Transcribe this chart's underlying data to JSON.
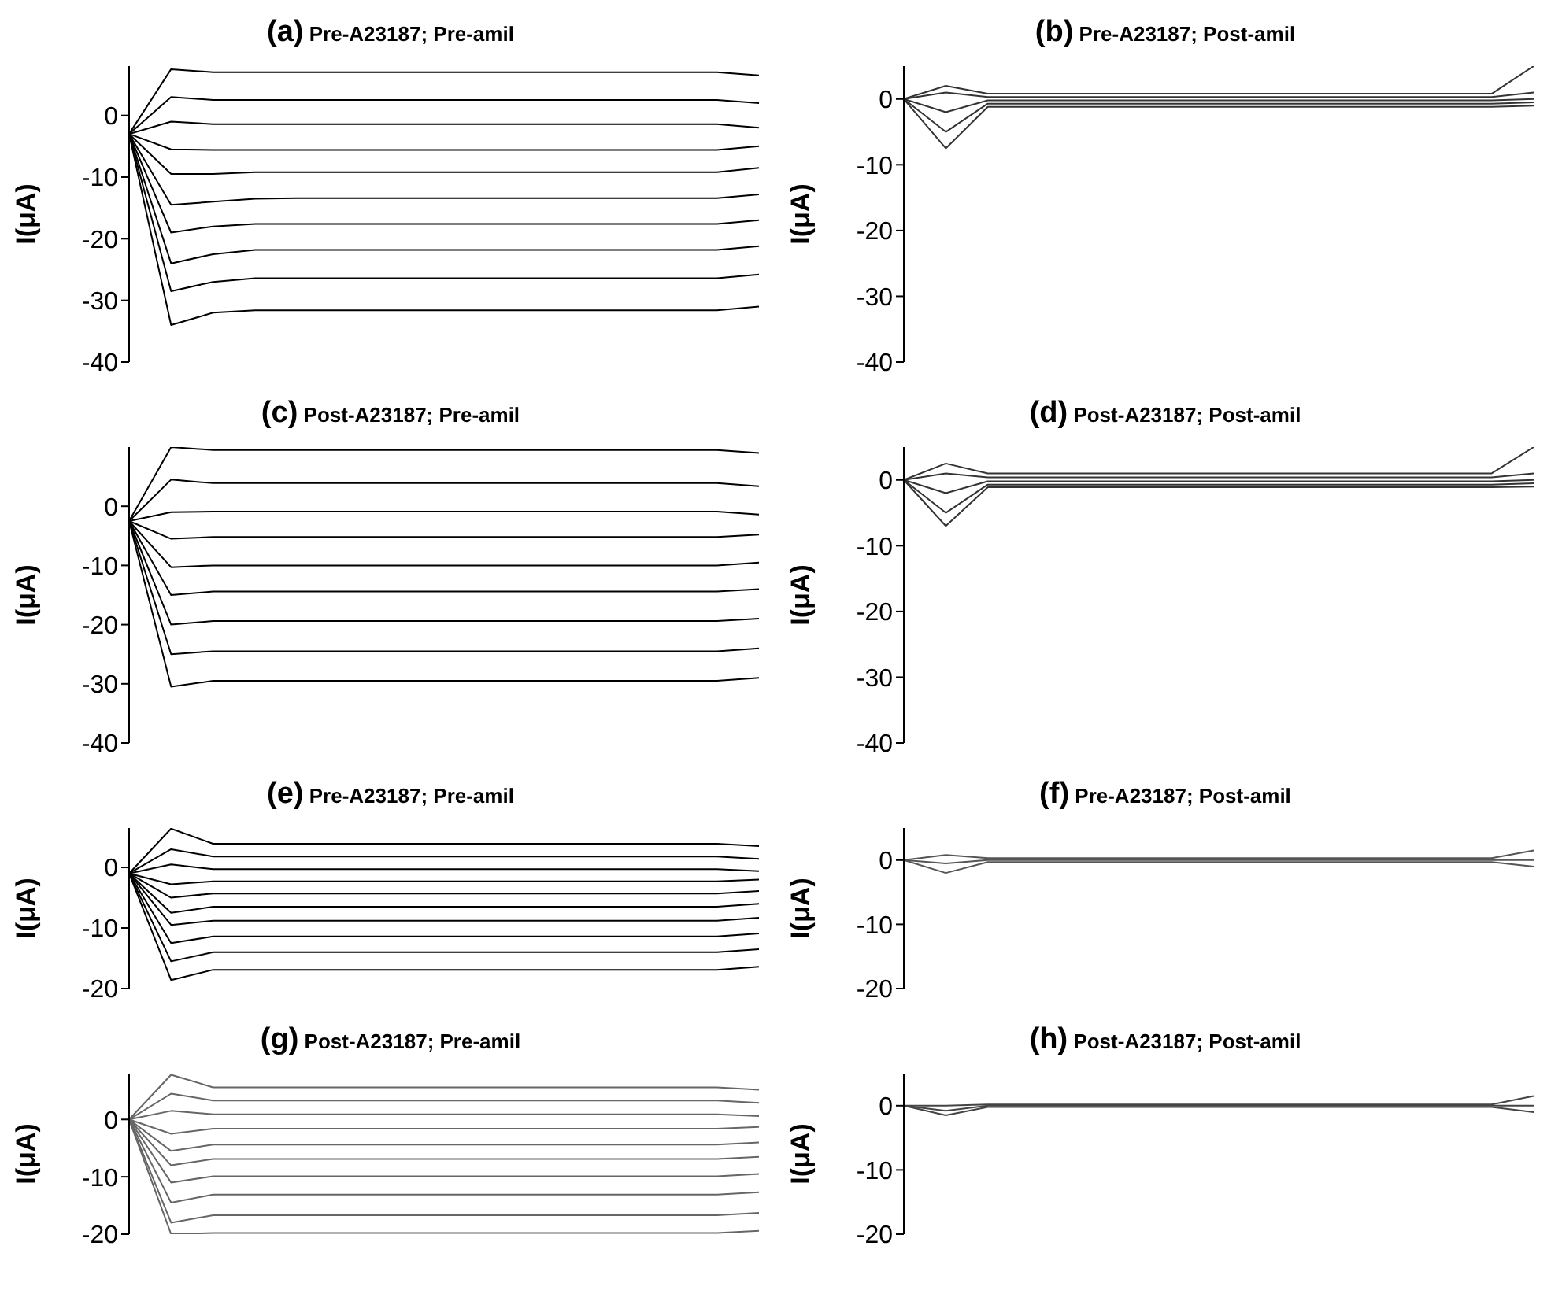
{
  "chart_data": [
    {
      "type": "line",
      "title": "(a) Pre-A23187; Pre-amil",
      "ylabel": "I(μA)",
      "tick_labels": "y",
      "ylim": [
        -40,
        8
      ],
      "yticks": [
        -40,
        -30,
        -20,
        -10,
        0
      ],
      "categories": [
        null,
        null,
        null,
        null,
        null,
        null,
        null,
        null,
        null,
        null,
        null,
        null,
        null,
        null,
        null,
        null
      ],
      "series": [
        {
          "color": "#000000",
          "values": [
            -3,
            7.5,
            7,
            7,
            7,
            7,
            7,
            7,
            7,
            7,
            7,
            7,
            7,
            7,
            7,
            6.5
          ]
        },
        {
          "color": "#000000",
          "values": [
            -3,
            3,
            2.5,
            2.5,
            2.5,
            2.5,
            2.5,
            2.5,
            2.5,
            2.5,
            2.5,
            2.5,
            2.5,
            2.5,
            2.5,
            2
          ]
        },
        {
          "color": "#000000",
          "values": [
            -3,
            -1,
            -1.4,
            -1.4,
            -1.4,
            -1.4,
            -1.4,
            -1.4,
            -1.4,
            -1.4,
            -1.4,
            -1.4,
            -1.4,
            -1.4,
            -1.4,
            -2
          ]
        },
        {
          "color": "#000000",
          "values": [
            -3,
            -5.5,
            -5.6,
            -5.6,
            -5.6,
            -5.6,
            -5.6,
            -5.6,
            -5.6,
            -5.6,
            -5.6,
            -5.6,
            -5.6,
            -5.6,
            -5.6,
            -5
          ]
        },
        {
          "color": "#000000",
          "values": [
            -3,
            -9.5,
            -9.5,
            -9.2,
            -9.2,
            -9.2,
            -9.2,
            -9.2,
            -9.2,
            -9.2,
            -9.2,
            -9.2,
            -9.2,
            -9.2,
            -9.2,
            -8.5
          ]
        },
        {
          "color": "#000000",
          "values": [
            -3,
            -14.5,
            -14,
            -13.5,
            -13.4,
            -13.4,
            -13.4,
            -13.4,
            -13.4,
            -13.4,
            -13.4,
            -13.4,
            -13.4,
            -13.4,
            -13.4,
            -12.8
          ]
        },
        {
          "color": "#000000",
          "values": [
            -3,
            -19,
            -18,
            -17.6,
            -17.6,
            -17.6,
            -17.6,
            -17.6,
            -17.6,
            -17.6,
            -17.6,
            -17.6,
            -17.6,
            -17.6,
            -17.6,
            -17
          ]
        },
        {
          "color": "#000000",
          "values": [
            -3,
            -24,
            -22.5,
            -21.8,
            -21.8,
            -21.8,
            -21.8,
            -21.8,
            -21.8,
            -21.8,
            -21.8,
            -21.8,
            -21.8,
            -21.8,
            -21.8,
            -21.2
          ]
        },
        {
          "color": "#000000",
          "values": [
            -3,
            -28.5,
            -27,
            -26.4,
            -26.4,
            -26.4,
            -26.4,
            -26.4,
            -26.4,
            -26.4,
            -26.4,
            -26.4,
            -26.4,
            -26.4,
            -26.4,
            -25.8
          ]
        },
        {
          "color": "#000000",
          "values": [
            -3,
            -34,
            -32,
            -31.6,
            -31.6,
            -31.6,
            -31.6,
            -31.6,
            -31.6,
            -31.6,
            -31.6,
            -31.6,
            -31.6,
            -31.6,
            -31.6,
            -31
          ]
        }
      ]
    },
    {
      "type": "line",
      "title": "(b) Pre-A23187; Post-amil",
      "ylabel": "I(μA)",
      "tick_labels": "y",
      "ylim": [
        -40,
        5
      ],
      "yticks": [
        -40,
        -30,
        -20,
        -10,
        0
      ],
      "categories": [
        null,
        null,
        null,
        null,
        null,
        null,
        null,
        null,
        null,
        null,
        null,
        null,
        null,
        null,
        null,
        null
      ],
      "series": [
        {
          "color": "#333333",
          "values": [
            0,
            2,
            0.8,
            0.8,
            0.8,
            0.8,
            0.8,
            0.8,
            0.8,
            0.8,
            0.8,
            0.8,
            0.8,
            0.8,
            0.8,
            5
          ]
        },
        {
          "color": "#333333",
          "values": [
            0,
            1,
            0.3,
            0.3,
            0.3,
            0.3,
            0.3,
            0.3,
            0.3,
            0.3,
            0.3,
            0.3,
            0.3,
            0.3,
            0.3,
            1
          ]
        },
        {
          "color": "#333333",
          "values": [
            0,
            -2,
            -0.2,
            -0.2,
            -0.2,
            -0.2,
            -0.2,
            -0.2,
            -0.2,
            -0.2,
            -0.2,
            -0.2,
            -0.2,
            -0.2,
            -0.2,
            0
          ]
        },
        {
          "color": "#333333",
          "values": [
            0,
            -5,
            -0.7,
            -0.7,
            -0.7,
            -0.7,
            -0.7,
            -0.7,
            -0.7,
            -0.7,
            -0.7,
            -0.7,
            -0.7,
            -0.7,
            -0.7,
            -0.5
          ]
        },
        {
          "color": "#333333",
          "values": [
            0,
            -7.5,
            -1.2,
            -1.2,
            -1.2,
            -1.2,
            -1.2,
            -1.2,
            -1.2,
            -1.2,
            -1.2,
            -1.2,
            -1.2,
            -1.2,
            -1.2,
            -1
          ]
        }
      ]
    },
    {
      "type": "line",
      "title": "(c) Post-A23187; Pre-amil",
      "ylabel": "I(μA)",
      "tick_labels": "y",
      "ylim": [
        -40,
        10
      ],
      "yticks": [
        -40,
        -30,
        -20,
        -10,
        0
      ],
      "categories": [
        null,
        null,
        null,
        null,
        null,
        null,
        null,
        null,
        null,
        null,
        null,
        null,
        null,
        null,
        null,
        null
      ],
      "series": [
        {
          "color": "#000000",
          "values": [
            -2.5,
            10,
            9.5,
            9.5,
            9.5,
            9.5,
            9.5,
            9.5,
            9.5,
            9.5,
            9.5,
            9.5,
            9.5,
            9.5,
            9.5,
            9
          ]
        },
        {
          "color": "#000000",
          "values": [
            -2.5,
            4.5,
            3.9,
            3.9,
            3.9,
            3.9,
            3.9,
            3.9,
            3.9,
            3.9,
            3.9,
            3.9,
            3.9,
            3.9,
            3.9,
            3.4
          ]
        },
        {
          "color": "#000000",
          "values": [
            -2.5,
            -1,
            -0.9,
            -0.9,
            -0.9,
            -0.9,
            -0.9,
            -0.9,
            -0.9,
            -0.9,
            -0.9,
            -0.9,
            -0.9,
            -0.9,
            -0.9,
            -1.4
          ]
        },
        {
          "color": "#000000",
          "values": [
            -2.5,
            -5.5,
            -5.2,
            -5.2,
            -5.2,
            -5.2,
            -5.2,
            -5.2,
            -5.2,
            -5.2,
            -5.2,
            -5.2,
            -5.2,
            -5.2,
            -5.2,
            -4.8
          ]
        },
        {
          "color": "#000000",
          "values": [
            -2.5,
            -10.3,
            -10,
            -10,
            -10,
            -10,
            -10,
            -10,
            -10,
            -10,
            -10,
            -10,
            -10,
            -10,
            -10,
            -9.5
          ]
        },
        {
          "color": "#000000",
          "values": [
            -2.5,
            -15,
            -14.4,
            -14.4,
            -14.4,
            -14.4,
            -14.4,
            -14.4,
            -14.4,
            -14.4,
            -14.4,
            -14.4,
            -14.4,
            -14.4,
            -14.4,
            -14
          ]
        },
        {
          "color": "#000000",
          "values": [
            -2.5,
            -20,
            -19.4,
            -19.4,
            -19.4,
            -19.4,
            -19.4,
            -19.4,
            -19.4,
            -19.4,
            -19.4,
            -19.4,
            -19.4,
            -19.4,
            -19.4,
            -19
          ]
        },
        {
          "color": "#000000",
          "values": [
            -2.5,
            -25,
            -24.5,
            -24.5,
            -24.5,
            -24.5,
            -24.5,
            -24.5,
            -24.5,
            -24.5,
            -24.5,
            -24.5,
            -24.5,
            -24.5,
            -24.5,
            -24
          ]
        },
        {
          "color": "#000000",
          "values": [
            -2.5,
            -30.5,
            -29.5,
            -29.5,
            -29.5,
            -29.5,
            -29.5,
            -29.5,
            -29.5,
            -29.5,
            -29.5,
            -29.5,
            -29.5,
            -29.5,
            -29.5,
            -29
          ]
        }
      ]
    },
    {
      "type": "line",
      "title": "(d) Post-A23187; Post-amil",
      "ylabel": "I(μA)",
      "tick_labels": "y",
      "ylim": [
        -40,
        5
      ],
      "yticks": [
        -40,
        -30,
        -20,
        -10,
        0
      ],
      "categories": [
        null,
        null,
        null,
        null,
        null,
        null,
        null,
        null,
        null,
        null,
        null,
        null,
        null,
        null,
        null,
        null
      ],
      "series": [
        {
          "color": "#333333",
          "values": [
            0,
            2.5,
            1,
            1,
            1,
            1,
            1,
            1,
            1,
            1,
            1,
            1,
            1,
            1,
            1,
            5
          ]
        },
        {
          "color": "#333333",
          "values": [
            0,
            1,
            0.4,
            0.4,
            0.4,
            0.4,
            0.4,
            0.4,
            0.4,
            0.4,
            0.4,
            0.4,
            0.4,
            0.4,
            0.4,
            1
          ]
        },
        {
          "color": "#333333",
          "values": [
            0,
            -2,
            -0.2,
            -0.2,
            -0.2,
            -0.2,
            -0.2,
            -0.2,
            -0.2,
            -0.2,
            -0.2,
            -0.2,
            -0.2,
            -0.2,
            -0.2,
            0
          ]
        },
        {
          "color": "#333333",
          "values": [
            0,
            -5,
            -0.7,
            -0.7,
            -0.7,
            -0.7,
            -0.7,
            -0.7,
            -0.7,
            -0.7,
            -0.7,
            -0.7,
            -0.7,
            -0.7,
            -0.7,
            -0.5
          ]
        },
        {
          "color": "#333333",
          "values": [
            0,
            -7,
            -1.1,
            -1.1,
            -1.1,
            -1.1,
            -1.1,
            -1.1,
            -1.1,
            -1.1,
            -1.1,
            -1.1,
            -1.1,
            -1.1,
            -1.1,
            -1
          ]
        }
      ]
    },
    {
      "type": "line",
      "title": "(e) Pre-A23187; Pre-amil",
      "ylabel": "I(μA)",
      "tick_labels": "y",
      "ylim": [
        -20,
        6.5
      ],
      "yticks": [
        -20,
        -10,
        0
      ],
      "categories": [
        null,
        null,
        null,
        null,
        null,
        null,
        null,
        null,
        null,
        null,
        null,
        null,
        null,
        null,
        null,
        null
      ],
      "series": [
        {
          "color": "#000000",
          "values": [
            -1,
            6.4,
            3.9,
            3.9,
            3.9,
            3.9,
            3.9,
            3.9,
            3.9,
            3.9,
            3.9,
            3.9,
            3.9,
            3.9,
            3.9,
            3.5
          ]
        },
        {
          "color": "#000000",
          "values": [
            -1,
            3,
            1.8,
            1.8,
            1.8,
            1.8,
            1.8,
            1.8,
            1.8,
            1.8,
            1.8,
            1.8,
            1.8,
            1.8,
            1.8,
            1.4
          ]
        },
        {
          "color": "#000000",
          "values": [
            -1,
            0.5,
            -0.3,
            -0.3,
            -0.3,
            -0.3,
            -0.3,
            -0.3,
            -0.3,
            -0.3,
            -0.3,
            -0.3,
            -0.3,
            -0.3,
            -0.3,
            -0.6
          ]
        },
        {
          "color": "#000000",
          "values": [
            -1,
            -2.8,
            -2.3,
            -2.3,
            -2.3,
            -2.3,
            -2.3,
            -2.3,
            -2.3,
            -2.3,
            -2.3,
            -2.3,
            -2.3,
            -2.3,
            -2.3,
            -2
          ]
        },
        {
          "color": "#000000",
          "values": [
            -1,
            -5,
            -4.3,
            -4.3,
            -4.3,
            -4.3,
            -4.3,
            -4.3,
            -4.3,
            -4.3,
            -4.3,
            -4.3,
            -4.3,
            -4.3,
            -4.3,
            -3.9
          ]
        },
        {
          "color": "#000000",
          "values": [
            -1,
            -7.5,
            -6.5,
            -6.5,
            -6.5,
            -6.5,
            -6.5,
            -6.5,
            -6.5,
            -6.5,
            -6.5,
            -6.5,
            -6.5,
            -6.5,
            -6.5,
            -6
          ]
        },
        {
          "color": "#000000",
          "values": [
            -1,
            -9.5,
            -8.8,
            -8.8,
            -8.8,
            -8.8,
            -8.8,
            -8.8,
            -8.8,
            -8.8,
            -8.8,
            -8.8,
            -8.8,
            -8.8,
            -8.8,
            -8.3
          ]
        },
        {
          "color": "#000000",
          "values": [
            -1,
            -12.5,
            -11.4,
            -11.4,
            -11.4,
            -11.4,
            -11.4,
            -11.4,
            -11.4,
            -11.4,
            -11.4,
            -11.4,
            -11.4,
            -11.4,
            -11.4,
            -10.9
          ]
        },
        {
          "color": "#000000",
          "values": [
            -1,
            -15.5,
            -14,
            -14,
            -14,
            -14,
            -14,
            -14,
            -14,
            -14,
            -14,
            -14,
            -14,
            -14,
            -14,
            -13.5
          ]
        },
        {
          "color": "#000000",
          "values": [
            -1,
            -18.6,
            -16.9,
            -16.9,
            -16.9,
            -16.9,
            -16.9,
            -16.9,
            -16.9,
            -16.9,
            -16.9,
            -16.9,
            -16.9,
            -16.9,
            -16.9,
            -16.4
          ]
        }
      ]
    },
    {
      "type": "line",
      "title": "(f) Pre-A23187; Post-amil",
      "ylabel": "I(μA)",
      "tick_labels": "y",
      "ylim": [
        -20,
        5
      ],
      "yticks": [
        -20,
        -10,
        0
      ],
      "categories": [
        null,
        null,
        null,
        null,
        null,
        null,
        null,
        null,
        null,
        null,
        null,
        null,
        null,
        null,
        null,
        null
      ],
      "series": [
        {
          "color": "#555555",
          "values": [
            0,
            0.8,
            0.3,
            0.3,
            0.3,
            0.3,
            0.3,
            0.3,
            0.3,
            0.3,
            0.3,
            0.3,
            0.3,
            0.3,
            0.3,
            1.5
          ]
        },
        {
          "color": "#555555",
          "values": [
            0,
            -0.5,
            0,
            0,
            0,
            0,
            0,
            0,
            0,
            0,
            0,
            0,
            0,
            0,
            0,
            0
          ]
        },
        {
          "color": "#555555",
          "values": [
            0,
            -2,
            -0.3,
            -0.3,
            -0.3,
            -0.3,
            -0.3,
            -0.3,
            -0.3,
            -0.3,
            -0.3,
            -0.3,
            -0.3,
            -0.3,
            -0.3,
            -1
          ]
        }
      ]
    },
    {
      "type": "line",
      "title": "(g) Post-A23187; Pre-amil",
      "ylabel": "I(μA)",
      "tick_labels": "y",
      "ylim": [
        -20,
        8
      ],
      "yticks": [
        -20,
        -10,
        0
      ],
      "categories": [
        null,
        null,
        null,
        null,
        null,
        null,
        null,
        null,
        null,
        null,
        null,
        null,
        null,
        null,
        null,
        null
      ],
      "series": [
        {
          "color": "#666666",
          "values": [
            0,
            7.8,
            5.6,
            5.6,
            5.6,
            5.6,
            5.6,
            5.6,
            5.6,
            5.6,
            5.6,
            5.6,
            5.6,
            5.6,
            5.6,
            5.2
          ]
        },
        {
          "color": "#666666",
          "values": [
            0,
            4.5,
            3.3,
            3.3,
            3.3,
            3.3,
            3.3,
            3.3,
            3.3,
            3.3,
            3.3,
            3.3,
            3.3,
            3.3,
            3.3,
            2.9
          ]
        },
        {
          "color": "#666666",
          "values": [
            0,
            1.5,
            0.9,
            0.9,
            0.9,
            0.9,
            0.9,
            0.9,
            0.9,
            0.9,
            0.9,
            0.9,
            0.9,
            0.9,
            0.9,
            0.6
          ]
        },
        {
          "color": "#666666",
          "values": [
            0,
            -2.5,
            -1.6,
            -1.6,
            -1.6,
            -1.6,
            -1.6,
            -1.6,
            -1.6,
            -1.6,
            -1.6,
            -1.6,
            -1.6,
            -1.6,
            -1.6,
            -1.3
          ]
        },
        {
          "color": "#666666",
          "values": [
            0,
            -5.5,
            -4.4,
            -4.4,
            -4.4,
            -4.4,
            -4.4,
            -4.4,
            -4.4,
            -4.4,
            -4.4,
            -4.4,
            -4.4,
            -4.4,
            -4.4,
            -4
          ]
        },
        {
          "color": "#666666",
          "values": [
            0,
            -8,
            -6.9,
            -6.9,
            -6.9,
            -6.9,
            -6.9,
            -6.9,
            -6.9,
            -6.9,
            -6.9,
            -6.9,
            -6.9,
            -6.9,
            -6.9,
            -6.5
          ]
        },
        {
          "color": "#666666",
          "values": [
            0,
            -11,
            -9.9,
            -9.9,
            -9.9,
            -9.9,
            -9.9,
            -9.9,
            -9.9,
            -9.9,
            -9.9,
            -9.9,
            -9.9,
            -9.9,
            -9.9,
            -9.5
          ]
        },
        {
          "color": "#666666",
          "values": [
            0,
            -14.5,
            -13.1,
            -13.1,
            -13.1,
            -13.1,
            -13.1,
            -13.1,
            -13.1,
            -13.1,
            -13.1,
            -13.1,
            -13.1,
            -13.1,
            -13.1,
            -12.7
          ]
        },
        {
          "color": "#666666",
          "values": [
            0,
            -18,
            -16.7,
            -16.7,
            -16.7,
            -16.7,
            -16.7,
            -16.7,
            -16.7,
            -16.7,
            -16.7,
            -16.7,
            -16.7,
            -16.7,
            -16.7,
            -16.3
          ]
        },
        {
          "color": "#666666",
          "values": [
            0,
            -20,
            -19.8,
            -19.8,
            -19.8,
            -19.8,
            -19.8,
            -19.8,
            -19.8,
            -19.8,
            -19.8,
            -19.8,
            -19.8,
            -19.8,
            -19.8,
            -19.4
          ]
        }
      ]
    },
    {
      "type": "line",
      "title": "(h) Post-A23187; Post-amil",
      "ylabel": "I(μA)",
      "tick_labels": "y",
      "ylim": [
        -20,
        5
      ],
      "yticks": [
        -20,
        -10,
        0
      ],
      "categories": [
        null,
        null,
        null,
        null,
        null,
        null,
        null,
        null,
        null,
        null,
        null,
        null,
        null,
        null,
        null,
        null
      ],
      "series": [
        {
          "color": "#444444",
          "values": [
            0,
            0,
            0.2,
            0.2,
            0.2,
            0.2,
            0.2,
            0.2,
            0.2,
            0.2,
            0.2,
            0.2,
            0.2,
            0.2,
            0.2,
            1.5
          ]
        },
        {
          "color": "#444444",
          "values": [
            0,
            -0.8,
            0,
            0,
            0,
            0,
            0,
            0,
            0,
            0,
            0,
            0,
            0,
            0,
            0,
            0
          ]
        },
        {
          "color": "#444444",
          "values": [
            0,
            -1.5,
            -0.2,
            -0.2,
            -0.2,
            -0.2,
            -0.2,
            -0.2,
            -0.2,
            -0.2,
            -0.2,
            -0.2,
            -0.2,
            -0.2,
            -0.2,
            -1
          ]
        }
      ]
    }
  ]
}
